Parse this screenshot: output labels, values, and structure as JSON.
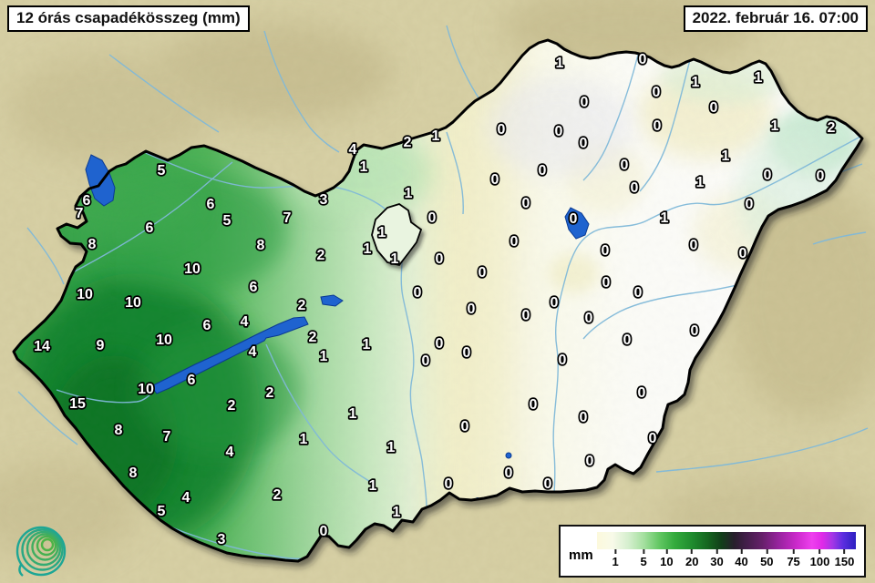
{
  "title": "12 órás csapadékösszeg (mm)",
  "datetime": "2022. február 16. 07:00",
  "legend": {
    "unit": "mm",
    "ticks": [
      {
        "label": "1",
        "p": 7.1
      },
      {
        "label": "5",
        "p": 18.0
      },
      {
        "label": "10",
        "p": 26.9
      },
      {
        "label": "20",
        "p": 36.7
      },
      {
        "label": "30",
        "p": 46.3
      },
      {
        "label": "40",
        "p": 55.8
      },
      {
        "label": "50",
        "p": 65.6
      },
      {
        "label": "75",
        "p": 75.9
      },
      {
        "label": "100",
        "p": 86.1
      },
      {
        "label": "150",
        "p": 95.6
      }
    ],
    "gradient": [
      {
        "c": "#fcf9dc",
        "p": 0
      },
      {
        "c": "#f8fae9",
        "p": 6
      },
      {
        "c": "#d6efcf",
        "p": 12
      },
      {
        "c": "#a5e0a0",
        "p": 18
      },
      {
        "c": "#63c763",
        "p": 24
      },
      {
        "c": "#33ab3d",
        "p": 30
      },
      {
        "c": "#1e8a2d",
        "p": 37
      },
      {
        "c": "#15641f",
        "p": 43
      },
      {
        "c": "#123f1a",
        "p": 48
      },
      {
        "c": "#271f2c",
        "p": 53
      },
      {
        "c": "#3f1e46",
        "p": 57
      },
      {
        "c": "#67206b",
        "p": 64
      },
      {
        "c": "#96239d",
        "p": 70
      },
      {
        "c": "#ca29ca",
        "p": 77
      },
      {
        "c": "#ee3fee",
        "p": 83
      },
      {
        "c": "#e02ae8",
        "p": 87
      },
      {
        "c": "#a336e6",
        "p": 91
      },
      {
        "c": "#5c2ee0",
        "p": 95
      },
      {
        "c": "#2c20c0",
        "p": 100
      }
    ]
  },
  "map": {
    "colors": {
      "outside_land": "#d8d1a6",
      "border": "#000000",
      "lake": "#1f63cf",
      "river": "#7fb8d8",
      "precip_white": "#fdfdff",
      "precip_yellow": "#f2eec2",
      "precip_green_light": "#a4d9a1",
      "precip_green": "#3caa4d",
      "precip_green_dark": "#0f7f2b"
    },
    "stations": [
      [
        "5",
        177,
        186
      ],
      [
        "6",
        95,
        219
      ],
      [
        "7",
        87,
        233
      ],
      [
        "8",
        101,
        267
      ],
      [
        "6",
        164,
        249
      ],
      [
        "6",
        231,
        223
      ],
      [
        "5",
        249,
        241
      ],
      [
        "7",
        315,
        238
      ],
      [
        "3",
        355,
        218
      ],
      [
        "8",
        286,
        268
      ],
      [
        "10",
        211,
        294
      ],
      [
        "6",
        278,
        314
      ],
      [
        "10",
        93,
        322
      ],
      [
        "10",
        146,
        331
      ],
      [
        "2",
        352,
        279
      ],
      [
        "2",
        331,
        334
      ],
      [
        "2",
        343,
        369
      ],
      [
        "1",
        355,
        390
      ],
      [
        "6",
        227,
        356
      ],
      [
        "4",
        268,
        352
      ],
      [
        "4",
        277,
        385
      ],
      [
        "14",
        46,
        379
      ],
      [
        "9",
        110,
        378
      ],
      [
        "10",
        180,
        372
      ],
      [
        "10",
        160,
        426
      ],
      [
        "6",
        210,
        416
      ],
      [
        "15",
        85,
        442
      ],
      [
        "2",
        254,
        444
      ],
      [
        "2",
        296,
        430
      ],
      [
        "8",
        130,
        471
      ],
      [
        "7",
        183,
        478
      ],
      [
        "1",
        333,
        481
      ],
      [
        "4",
        252,
        495
      ],
      [
        "8",
        146,
        518
      ],
      [
        "4",
        204,
        545
      ],
      [
        "2",
        304,
        542
      ],
      [
        "5",
        177,
        560
      ],
      [
        "3",
        243,
        591
      ],
      [
        "4",
        387,
        163
      ],
      [
        "2",
        447,
        155
      ],
      [
        "1",
        478,
        148
      ],
      [
        "1",
        399,
        182
      ],
      [
        "1",
        448,
        211
      ],
      [
        "0",
        474,
        238
      ],
      [
        "1",
        419,
        254
      ],
      [
        "1",
        403,
        272
      ],
      [
        "1",
        433,
        283
      ],
      [
        "0",
        482,
        283
      ],
      [
        "0",
        458,
        320
      ],
      [
        "1",
        402,
        377
      ],
      [
        "0",
        467,
        395
      ],
      [
        "0",
        482,
        376
      ],
      [
        "1",
        387,
        453
      ],
      [
        "1",
        429,
        490
      ],
      [
        "1",
        409,
        532
      ],
      [
        "1",
        435,
        561
      ],
      [
        "0",
        355,
        582
      ],
      [
        "0",
        492,
        530
      ],
      [
        "0",
        510,
        467
      ],
      [
        "0",
        512,
        386
      ],
      [
        "0",
        517,
        338
      ],
      [
        "0",
        529,
        298
      ],
      [
        "0",
        564,
        264
      ],
      [
        "0",
        550,
        141
      ],
      [
        "0",
        543,
        196
      ],
      [
        "0",
        577,
        222
      ],
      [
        "0",
        595,
        186
      ],
      [
        "0",
        613,
        143
      ],
      [
        "0",
        640,
        156
      ],
      [
        "0",
        641,
        111
      ],
      [
        "1",
        614,
        68
      ],
      [
        "0",
        705,
        64
      ],
      [
        "0",
        720,
        100
      ],
      [
        "0",
        721,
        137
      ],
      [
        "0",
        685,
        180
      ],
      [
        "0",
        696,
        205
      ],
      [
        "0",
        629,
        239
      ],
      [
        "1",
        729,
        238
      ],
      [
        "0",
        664,
        274
      ],
      [
        "0",
        665,
        309
      ],
      [
        "0",
        700,
        320
      ],
      [
        "0",
        608,
        331
      ],
      [
        "0",
        577,
        345
      ],
      [
        "0",
        646,
        348
      ],
      [
        "0",
        617,
        394
      ],
      [
        "0",
        585,
        443
      ],
      [
        "0",
        640,
        457
      ],
      [
        "0",
        558,
        518
      ],
      [
        "0",
        601,
        530
      ],
      [
        "0",
        647,
        505
      ],
      [
        "0",
        704,
        430
      ],
      [
        "0",
        716,
        480
      ],
      [
        "0",
        688,
        372
      ],
      [
        "0",
        762,
        362
      ],
      [
        "0",
        815,
        277
      ],
      [
        "0",
        822,
        223
      ],
      [
        "0",
        761,
        268
      ],
      [
        "1",
        768,
        199
      ],
      [
        "0",
        842,
        191
      ],
      [
        "0",
        900,
        192
      ],
      [
        "1",
        796,
        170
      ],
      [
        "1",
        850,
        137
      ],
      [
        "2",
        912,
        139
      ],
      [
        "0",
        783,
        117
      ],
      [
        "1",
        763,
        89
      ],
      [
        "1",
        832,
        84
      ]
    ]
  },
  "logo": {
    "name": "met-service-spiral-logo"
  }
}
